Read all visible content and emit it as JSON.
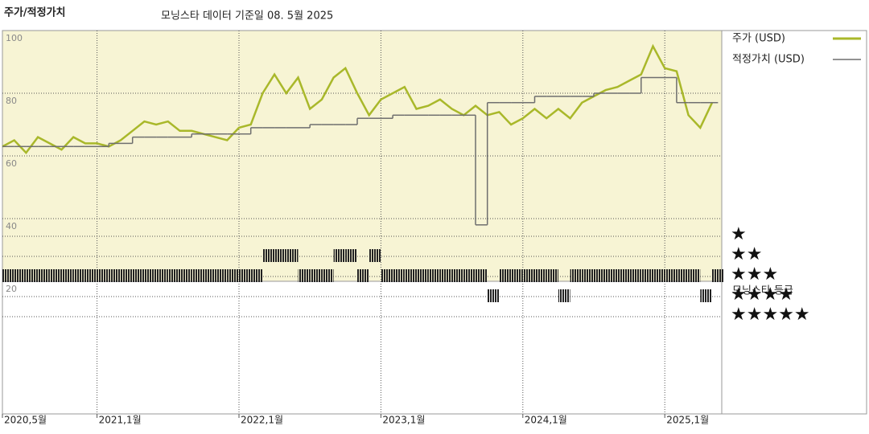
{
  "chart_data": {
    "type": "line",
    "title": "주가/적정가치",
    "subtitle": "모닝스타 데이터 기준일 08. 5월 2025",
    "x": [
      "2020-05",
      "2020-06",
      "2020-07",
      "2020-08",
      "2020-09",
      "2020-10",
      "2020-11",
      "2020-12",
      "2021-01",
      "2021-02",
      "2021-03",
      "2021-04",
      "2021-05",
      "2021-06",
      "2021-07",
      "2021-08",
      "2021-09",
      "2021-10",
      "2021-11",
      "2021-12",
      "2022-01",
      "2022-02",
      "2022-03",
      "2022-04",
      "2022-05",
      "2022-06",
      "2022-07",
      "2022-08",
      "2022-09",
      "2022-10",
      "2022-11",
      "2022-12",
      "2023-01",
      "2023-02",
      "2023-03",
      "2023-04",
      "2023-05",
      "2023-06",
      "2023-07",
      "2023-08",
      "2023-09",
      "2023-10",
      "2023-11",
      "2023-12",
      "2024-01",
      "2024-02",
      "2024-03",
      "2024-04",
      "2024-05",
      "2024-06",
      "2024-07",
      "2024-08",
      "2024-09",
      "2024-10",
      "2024-11",
      "2024-12",
      "2025-01",
      "2025-02",
      "2025-03",
      "2025-04",
      "2025-05"
    ],
    "series": [
      {
        "name": "주가 (USD)",
        "color": "#a9b82a",
        "values": [
          63,
          65,
          61,
          66,
          64,
          62,
          66,
          64,
          64,
          63,
          65,
          68,
          71,
          70,
          71,
          68,
          68,
          67,
          66,
          65,
          69,
          70,
          80,
          86,
          80,
          85,
          75,
          78,
          85,
          88,
          80,
          73,
          78,
          80,
          82,
          75,
          76,
          78,
          75,
          73,
          76,
          73,
          74,
          70,
          72,
          75,
          72,
          75,
          72,
          77,
          79,
          81,
          82,
          84,
          86,
          95,
          88,
          87,
          73,
          69,
          77
        ]
      },
      {
        "name": "적정가치 (USD)",
        "color": "#6e6e6e",
        "step": true,
        "values": [
          63,
          63,
          63,
          63,
          63,
          63,
          63,
          63,
          63,
          64,
          64,
          66,
          66,
          66,
          66,
          66,
          67,
          67,
          67,
          67,
          67,
          69,
          69,
          69,
          69,
          69,
          70,
          70,
          70,
          70,
          72,
          72,
          72,
          73,
          73,
          73,
          73,
          73,
          73,
          73,
          38,
          77,
          77,
          77,
          77,
          79,
          79,
          79,
          79,
          79,
          80,
          80,
          80,
          80,
          85,
          85,
          85,
          77,
          77,
          77,
          77
        ]
      }
    ],
    "ylim": [
      20,
      100
    ],
    "yticks": [
      20,
      40,
      60,
      80,
      100
    ],
    "grid": true,
    "xticks": [
      {
        "value": "2020-05",
        "label": "2020,5월"
      },
      {
        "value": "2021-01",
        "label": "2021,1월"
      },
      {
        "value": "2022-01",
        "label": "2022,1월"
      },
      {
        "value": "2023-01",
        "label": "2023,1월"
      },
      {
        "value": "2024-01",
        "label": "2024,1월"
      },
      {
        "value": "2025-01",
        "label": "2025,1월"
      }
    ],
    "rating_title": "모닝스타 등급",
    "rating_labels": [
      "★★★★★",
      "★★★★",
      "★★★",
      "★★",
      "★"
    ],
    "ratings": [
      3,
      3,
      3,
      3,
      3,
      3,
      3,
      3,
      3,
      3,
      3,
      3,
      3,
      3,
      3,
      3,
      3,
      3,
      3,
      3,
      3,
      3,
      2,
      2,
      2,
      3,
      3,
      3,
      2,
      2,
      3,
      2,
      3,
      3,
      3,
      3,
      3,
      3,
      3,
      3,
      3,
      4,
      3,
      3,
      3,
      3,
      3,
      4,
      3,
      3,
      3,
      3,
      3,
      3,
      3,
      3,
      3,
      3,
      3,
      4,
      3
    ],
    "rating_color": "#222"
  }
}
